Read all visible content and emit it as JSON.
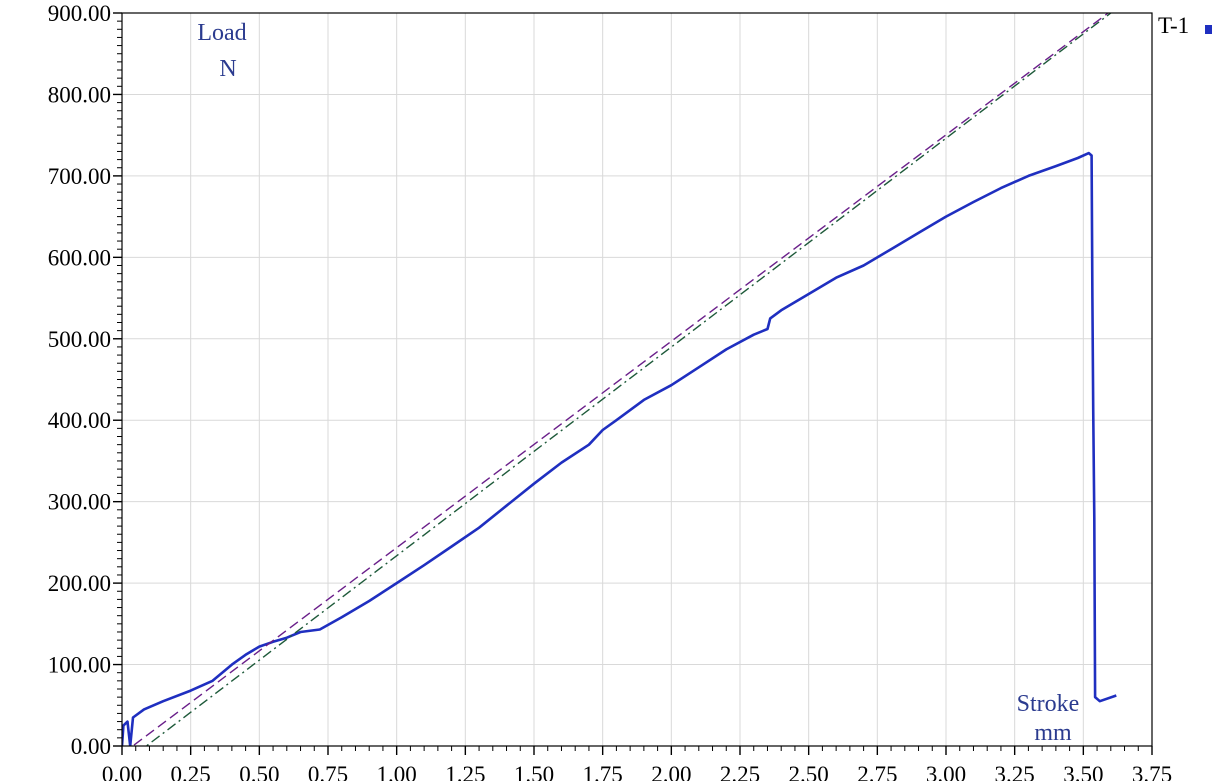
{
  "chart_data": {
    "type": "line",
    "ylabel": "Load",
    "yunit": "N",
    "xlabel": "Stroke",
    "xunit": "mm",
    "xlim": [
      0,
      3.75
    ],
    "ylim": [
      0,
      900
    ],
    "x_ticks": [
      "0.00",
      "0.25",
      "0.50",
      "0.75",
      "1.00",
      "1.25",
      "1.50",
      "1.75",
      "2.00",
      "2.25",
      "2.50",
      "2.75",
      "3.00",
      "3.25",
      "3.50",
      "3.75"
    ],
    "y_ticks": [
      "0.00",
      "100.00",
      "200.00",
      "300.00",
      "400.00",
      "500.00",
      "600.00",
      "700.00",
      "800.00",
      "900.00"
    ],
    "grid": true,
    "legend": "top-right",
    "series": [
      {
        "name": "T-1",
        "color": "#1f2fc0",
        "style": "solid",
        "points": [
          [
            0.0,
            0
          ],
          [
            0.005,
            25
          ],
          [
            0.02,
            30
          ],
          [
            0.03,
            0
          ],
          [
            0.04,
            35
          ],
          [
            0.08,
            45
          ],
          [
            0.15,
            55
          ],
          [
            0.25,
            68
          ],
          [
            0.33,
            80
          ],
          [
            0.4,
            100
          ],
          [
            0.45,
            112
          ],
          [
            0.5,
            122
          ],
          [
            0.55,
            128
          ],
          [
            0.6,
            133
          ],
          [
            0.65,
            140
          ],
          [
            0.72,
            143
          ],
          [
            0.8,
            158
          ],
          [
            0.9,
            178
          ],
          [
            1.0,
            200
          ],
          [
            1.1,
            222
          ],
          [
            1.2,
            245
          ],
          [
            1.3,
            268
          ],
          [
            1.4,
            295
          ],
          [
            1.5,
            322
          ],
          [
            1.6,
            348
          ],
          [
            1.7,
            370
          ],
          [
            1.75,
            388
          ],
          [
            1.8,
            400
          ],
          [
            1.9,
            425
          ],
          [
            2.0,
            443
          ],
          [
            2.1,
            465
          ],
          [
            2.2,
            487
          ],
          [
            2.3,
            505
          ],
          [
            2.35,
            512
          ],
          [
            2.36,
            525
          ],
          [
            2.4,
            535
          ],
          [
            2.5,
            555
          ],
          [
            2.6,
            575
          ],
          [
            2.7,
            590
          ],
          [
            2.8,
            610
          ],
          [
            2.9,
            630
          ],
          [
            3.0,
            650
          ],
          [
            3.1,
            668
          ],
          [
            3.2,
            685
          ],
          [
            3.3,
            700
          ],
          [
            3.4,
            712
          ],
          [
            3.48,
            722
          ],
          [
            3.52,
            728
          ],
          [
            3.53,
            725
          ],
          [
            3.533,
            550
          ],
          [
            3.536,
            415
          ],
          [
            3.54,
            280
          ],
          [
            3.543,
            60
          ],
          [
            3.56,
            55
          ],
          [
            3.62,
            62
          ]
        ]
      },
      {
        "color": "#6a1f8a",
        "style": "dashed",
        "points": [
          [
            0.0,
            -10
          ],
          [
            3.59,
            900
          ]
        ]
      },
      {
        "color": "#1e5a3a",
        "style": "dash-dot",
        "points": [
          [
            0.05,
            -10
          ],
          [
            3.6,
            900
          ]
        ]
      }
    ]
  }
}
